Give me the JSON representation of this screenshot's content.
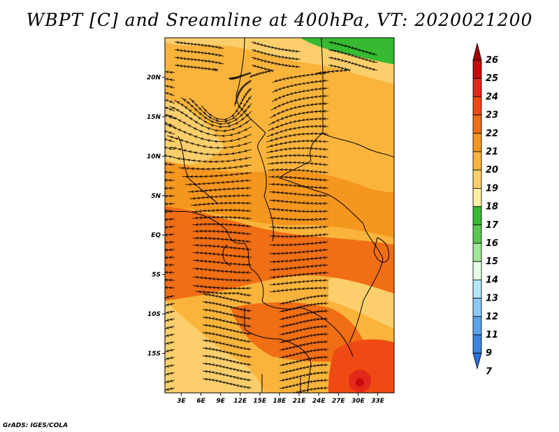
{
  "title": "WBPT [C] and Sreamline at 400hPa, VT: 2020021200",
  "credit": "GrADS: IGES/COLA",
  "map": {
    "lat_ticks": [
      {
        "label": "20N",
        "lat": 20
      },
      {
        "label": "15N",
        "lat": 15
      },
      {
        "label": "10N",
        "lat": 10
      },
      {
        "label": "5N",
        "lat": 5
      },
      {
        "label": "EQ",
        "lat": 0
      },
      {
        "label": "5S",
        "lat": -5
      },
      {
        "label": "10S",
        "lat": -10
      },
      {
        "label": "15S",
        "lat": -15
      }
    ],
    "lon_ticks": [
      {
        "label": "3E",
        "lon": 3
      },
      {
        "label": "6E",
        "lon": 6
      },
      {
        "label": "9E",
        "lon": 9
      },
      {
        "label": "12E",
        "lon": 12
      },
      {
        "label": "15E",
        "lon": 15
      },
      {
        "label": "18E",
        "lon": 18
      },
      {
        "label": "21E",
        "lon": 21
      },
      {
        "label": "24E",
        "lon": 24
      },
      {
        "label": "27E",
        "lon": 27
      },
      {
        "label": "30E",
        "lon": 30
      },
      {
        "label": "33E",
        "lon": 33
      }
    ],
    "extent": {
      "lon_min": 0.5,
      "lon_max": 35.5,
      "lat_min": -20,
      "lat_max": 25
    }
  },
  "colorbar": {
    "levels": [
      {
        "label": "26",
        "color": "#a50000"
      },
      {
        "label": "25",
        "color": "#c80a0a"
      },
      {
        "label": "24",
        "color": "#e2281a"
      },
      {
        "label": "23",
        "color": "#f04a14"
      },
      {
        "label": "22",
        "color": "#f06e14"
      },
      {
        "label": "21",
        "color": "#f5961e"
      },
      {
        "label": "20",
        "color": "#fab43c"
      },
      {
        "label": "19",
        "color": "#fccf6c"
      },
      {
        "label": "18",
        "color": "#fdeea0"
      },
      {
        "label": "17",
        "color": "#37b932"
      },
      {
        "label": "16",
        "color": "#5ac850"
      },
      {
        "label": "15",
        "color": "#a0e696"
      },
      {
        "label": "14",
        "color": "#e6ffe6"
      },
      {
        "label": "13",
        "color": "#b4e6fa"
      },
      {
        "label": "12",
        "color": "#8cc8f5"
      },
      {
        "label": "11",
        "color": "#5aa5eb"
      },
      {
        "label": "9",
        "color": "#3c86e1"
      },
      {
        "label": "7",
        "color": "#1e64d2"
      }
    ],
    "bottom_color": "#2a6fe0"
  }
}
